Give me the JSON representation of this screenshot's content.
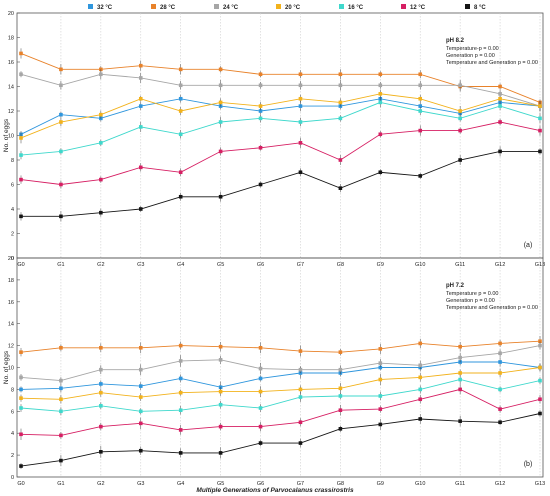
{
  "chart_data": {
    "type": "line",
    "legend_position": "top",
    "legend": [
      {
        "name": "32 °C",
        "color": "#2f96dd"
      },
      {
        "name": "28 °C",
        "color": "#e8822a"
      },
      {
        "name": "24 °C",
        "color": "#a6a6a6"
      },
      {
        "name": "20 °C",
        "color": "#f2b21c"
      },
      {
        "name": "16 °C",
        "color": "#3fd8cc"
      },
      {
        "name": "12 °C",
        "color": "#d61f63"
      },
      {
        "name": "8 °C",
        "color": "#151515"
      }
    ],
    "categories": [
      "G0",
      "G1",
      "G2",
      "G3",
      "G4",
      "G5",
      "G6",
      "G7",
      "G8",
      "G9",
      "G10",
      "G11",
      "G12",
      "G13"
    ],
    "xlabel": "Multiple Generations of Parvocalanus crassirostris",
    "panels": [
      {
        "label": "(a)",
        "ylabel": "No. of eggs",
        "ylim": [
          0,
          20
        ],
        "yticks": [
          0,
          2,
          4,
          6,
          8,
          10,
          12,
          14,
          16,
          18,
          20
        ],
        "stats": {
          "title": "pH 8.2",
          "lines": [
            "Temperature-p = 0.00",
            "Generation p = 0.00",
            "Temperature and Generation p = 0.00"
          ]
        },
        "series": [
          {
            "name": "32 °C",
            "values": [
              10.1,
              11.7,
              11.4,
              12.4,
              13.0,
              12.4,
              12.0,
              12.4,
              12.4,
              13.0,
              12.4,
              11.8,
              12.7,
              12.4
            ]
          },
          {
            "name": "28 °C",
            "values": [
              16.7,
              15.4,
              15.4,
              15.7,
              15.4,
              15.4,
              15.0,
              15.0,
              15.0,
              15.0,
              15.0,
              14.0,
              14.0,
              12.7
            ]
          },
          {
            "name": "24 °C",
            "values": [
              15.0,
              14.1,
              15.0,
              14.7,
              14.1,
              14.1,
              14.1,
              14.1,
              14.1,
              14.1,
              14.1,
              14.1,
              13.4,
              12.4
            ]
          },
          {
            "name": "20 °C",
            "values": [
              9.8,
              11.1,
              11.7,
              13.0,
              12.0,
              12.7,
              12.4,
              13.0,
              12.7,
              13.4,
              13.0,
              12.0,
              13.0,
              12.4
            ]
          },
          {
            "name": "16 °C",
            "values": [
              8.4,
              8.7,
              9.4,
              10.7,
              10.1,
              11.1,
              11.4,
              11.1,
              11.4,
              12.7,
              12.0,
              11.4,
              12.4,
              11.4
            ]
          },
          {
            "name": "12 °C",
            "values": [
              6.4,
              6.0,
              6.4,
              7.4,
              7.0,
              8.7,
              9.0,
              9.4,
              8.0,
              10.1,
              10.4,
              10.4,
              11.1,
              10.4
            ]
          },
          {
            "name": "8 °C",
            "values": [
              3.4,
              3.4,
              3.7,
              4.0,
              5.0,
              5.0,
              6.0,
              7.0,
              5.7,
              7.0,
              6.7,
              8.0,
              8.7,
              8.7
            ]
          }
        ]
      },
      {
        "label": "(b)",
        "ylabel": "No. of eggs",
        "ylim": [
          0,
          20
        ],
        "yticks": [
          0,
          2,
          4,
          6,
          8,
          10,
          12,
          14,
          16,
          18,
          20
        ],
        "stats": {
          "title": "pH 7.2",
          "lines": [
            "Temperature p = 0.00",
            "Generation p = 0.00",
            "Temperature and Generation p = 0.00"
          ]
        },
        "series": [
          {
            "name": "32 °C",
            "values": [
              8.0,
              8.1,
              8.5,
              8.3,
              9.0,
              8.2,
              9.0,
              9.5,
              9.5,
              10.0,
              10.0,
              10.5,
              10.5,
              10.0
            ]
          },
          {
            "name": "28 °C",
            "values": [
              11.4,
              11.8,
              11.8,
              11.8,
              12.0,
              11.9,
              11.8,
              11.5,
              11.4,
              11.7,
              12.2,
              11.9,
              12.2,
              12.4
            ]
          },
          {
            "name": "24 °C",
            "values": [
              9.1,
              8.8,
              9.8,
              9.8,
              10.6,
              10.7,
              9.9,
              9.8,
              9.8,
              10.4,
              10.2,
              10.9,
              11.3,
              12.0
            ]
          },
          {
            "name": "20 °C",
            "values": [
              7.2,
              7.1,
              7.7,
              7.3,
              7.7,
              7.8,
              7.8,
              8.0,
              8.1,
              8.9,
              9.1,
              9.5,
              9.5,
              10.0
            ]
          },
          {
            "name": "16 °C",
            "values": [
              6.3,
              6.0,
              6.5,
              6.0,
              6.1,
              6.6,
              6.3,
              7.3,
              7.4,
              7.4,
              8.0,
              8.9,
              8.0,
              8.8
            ]
          },
          {
            "name": "12 °C",
            "values": [
              3.9,
              3.8,
              4.6,
              4.9,
              4.3,
              4.6,
              4.6,
              5.0,
              6.1,
              6.2,
              7.1,
              8.0,
              6.2,
              7.1
            ]
          },
          {
            "name": "8 °C",
            "values": [
              1.0,
              1.5,
              2.3,
              2.4,
              2.2,
              2.2,
              3.1,
              3.1,
              4.4,
              4.8,
              5.3,
              5.1,
              5.0,
              5.8
            ]
          }
        ]
      }
    ]
  }
}
